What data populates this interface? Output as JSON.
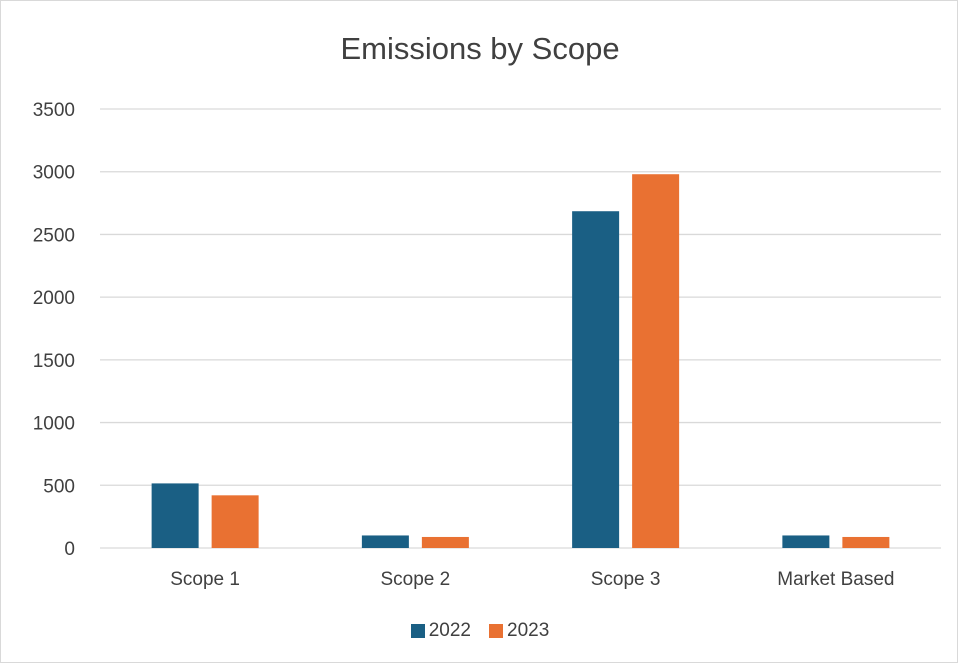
{
  "chart_data": {
    "type": "bar",
    "title": "Emissions by Scope",
    "categories": [
      "Scope 1",
      "Scope 2",
      "Scope 3",
      "Market Based"
    ],
    "series": [
      {
        "name": "2022",
        "values": [
          515,
          100,
          2685,
          100
        ],
        "color": "#1a5f84"
      },
      {
        "name": "2023",
        "values": [
          420,
          88,
          2980,
          88
        ],
        "color": "#e97132"
      }
    ],
    "ylim": [
      0,
      3500
    ],
    "yticks": [
      "0",
      "500",
      "1000",
      "1500",
      "2000",
      "2500",
      "3000",
      "3500"
    ],
    "grid": true,
    "legend": "bottom",
    "gridline_color": "#d9d9d9"
  }
}
